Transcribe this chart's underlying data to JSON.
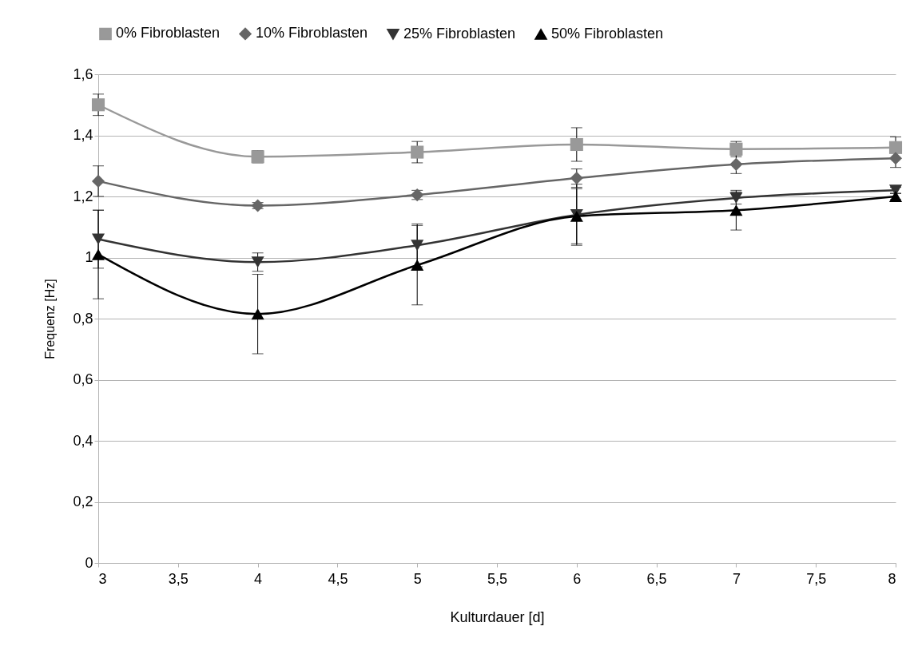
{
  "chart_data": {
    "type": "line",
    "xlabel": "Kulturdauer [d]",
    "ylabel": "Frequenz [Hz]",
    "x": [
      3,
      4,
      5,
      6,
      7,
      8
    ],
    "series": [
      {
        "name": "0% Fibroblasten",
        "color": "#999999",
        "marker": "square",
        "values": [
          1.5,
          1.33,
          1.345,
          1.37,
          1.355,
          1.36
        ],
        "errors": [
          0.035,
          0.02,
          0.035,
          0.055,
          0.025,
          0.035
        ]
      },
      {
        "name": "10% Fibroblasten",
        "color": "#666666",
        "marker": "diamond",
        "values": [
          1.25,
          1.17,
          1.205,
          1.26,
          1.305,
          1.325
        ],
        "errors": [
          0.05,
          0.01,
          0.015,
          0.03,
          0.03,
          0.03
        ]
      },
      {
        "name": "25% Fibroblasten",
        "color": "#333333",
        "marker": "triangle-down",
        "values": [
          1.06,
          0.985,
          1.04,
          1.14,
          1.195,
          1.22
        ],
        "errors": [
          0.095,
          0.03,
          0.07,
          0.1,
          0.02,
          0.01
        ]
      },
      {
        "name": "50% Fibroblasten",
        "color": "#000000",
        "marker": "triangle",
        "values": [
          1.01,
          0.815,
          0.975,
          1.135,
          1.155,
          1.2
        ],
        "errors": [
          0.145,
          0.13,
          0.13,
          0.09,
          0.065,
          0.01
        ]
      }
    ],
    "xlim": [
      3,
      8
    ],
    "xticks": [
      3,
      {
        "value": 3.5,
        "label": "3,5"
      },
      4,
      {
        "value": 4.5,
        "label": "4,5"
      },
      5,
      {
        "value": 5.5,
        "label": "5,5"
      },
      6,
      {
        "value": 6.5,
        "label": "6,5"
      },
      7,
      {
        "value": 7.5,
        "label": "7,5"
      },
      8
    ],
    "ylim": [
      0,
      1.6
    ],
    "yticks": [
      0,
      {
        "value": 0.2,
        "label": "0,2"
      },
      {
        "value": 0.4,
        "label": "0,4"
      },
      {
        "value": 0.6,
        "label": "0,6"
      },
      {
        "value": 0.8,
        "label": "0,8"
      },
      1,
      {
        "value": 1.2,
        "label": "1,2"
      },
      {
        "value": 1.4,
        "label": "1,4"
      },
      {
        "value": 1.6,
        "label": "1,6"
      }
    ],
    "grid": "y",
    "legend": "top",
    "line_style": "solid"
  }
}
